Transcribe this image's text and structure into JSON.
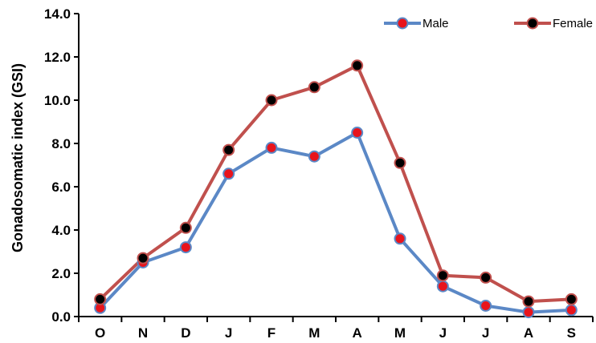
{
  "chart_data": {
    "type": "line",
    "title": "",
    "xlabel": "",
    "ylabel": "Gonadosomatic index (GSI)",
    "categories": [
      "O",
      "N",
      "D",
      "J",
      "F",
      "M",
      "A",
      "M",
      "J",
      "J",
      "A",
      "S"
    ],
    "ylim": [
      0,
      14
    ],
    "yticks": [
      "0.0",
      "2.0",
      "4.0",
      "6.0",
      "8.0",
      "10.0",
      "12.0",
      "14.0"
    ],
    "grid": false,
    "legend_position": "top-right",
    "series": [
      {
        "name": "Male",
        "values": [
          0.4,
          2.5,
          3.2,
          6.6,
          7.8,
          7.4,
          8.5,
          3.6,
          1.4,
          0.5,
          0.2,
          0.3
        ],
        "line_color": "#5b88c6",
        "marker_color": "#e8141c"
      },
      {
        "name": "Female",
        "values": [
          0.8,
          2.7,
          4.1,
          7.7,
          10.0,
          10.6,
          11.6,
          7.1,
          1.9,
          1.8,
          0.7,
          0.8
        ],
        "line_color": "#c0504d",
        "marker_color": "#000000"
      }
    ]
  }
}
